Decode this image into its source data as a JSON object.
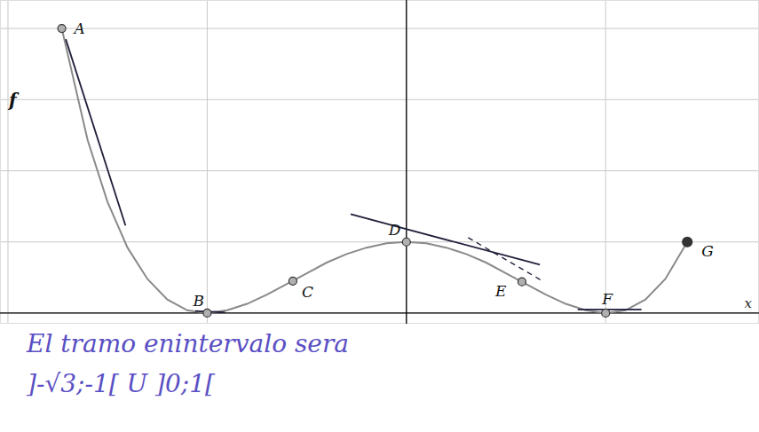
{
  "chart_data": {
    "type": "line",
    "x_label": "x",
    "y_label": "f",
    "x": [
      -1.73,
      -1.6,
      -1.5,
      -1.4,
      -1.3,
      -1.2,
      -1.1,
      -1.0,
      -0.9,
      -0.8,
      -0.7,
      -0.6,
      -0.5,
      -0.4,
      -0.3,
      -0.2,
      -0.1,
      0.0,
      0.1,
      0.2,
      0.3,
      0.4,
      0.5,
      0.6,
      0.7,
      0.8,
      0.9,
      1.0,
      1.1,
      1.2,
      1.3,
      1.41
    ],
    "values": [
      4.0,
      2.43,
      1.56,
      0.92,
      0.48,
      0.19,
      0.04,
      0.0,
      0.04,
      0.13,
      0.26,
      0.41,
      0.56,
      0.71,
      0.83,
      0.92,
      0.98,
      1.0,
      0.98,
      0.92,
      0.83,
      0.71,
      0.56,
      0.41,
      0.26,
      0.13,
      0.04,
      0.0,
      0.04,
      0.19,
      0.48,
      1.0
    ],
    "color": "#8a8a8a",
    "points": [
      {
        "label": "A",
        "x": -1.73,
        "y": 4.0
      },
      {
        "label": "B",
        "x": -1.0,
        "y": 0.0
      },
      {
        "label": "C",
        "x": -0.57,
        "y": 0.45
      },
      {
        "label": "D",
        "x": 0.0,
        "y": 1.0
      },
      {
        "label": "E",
        "x": 0.58,
        "y": 0.44
      },
      {
        "label": "F",
        "x": 1.0,
        "y": 0.0
      },
      {
        "label": "G",
        "x": 1.41,
        "y": 1.0
      }
    ],
    "tangents": [
      {
        "x": [
          -1.71,
          -1.41
        ],
        "y": [
          3.85,
          1.23
        ],
        "line_style": "solid"
      },
      {
        "x": [
          -1.06,
          -0.91
        ],
        "y": [
          0.03,
          0.01
        ],
        "line_style": "solid"
      },
      {
        "x": [
          -0.28,
          0.67
        ],
        "y": [
          1.39,
          0.68
        ],
        "line_style": "solid"
      },
      {
        "x": [
          0.31,
          0.69
        ],
        "y": [
          1.06,
          0.44
        ],
        "line_style": "dashed"
      },
      {
        "x": [
          0.86,
          1.18
        ],
        "y": [
          0.05,
          0.05
        ],
        "line_style": "solid"
      }
    ],
    "annotations": [
      "El tramo enintervalo sera",
      "]-√3;-1[ U ]0;1["
    ],
    "xlim": [
      -2.04,
      1.77
    ],
    "ylim": [
      -0.15,
      4.4
    ],
    "xticks": [
      -2,
      -1,
      0,
      1
    ],
    "yticks": [
      0,
      1,
      2,
      3,
      4
    ],
    "grid": true,
    "tick_labels": false
  }
}
